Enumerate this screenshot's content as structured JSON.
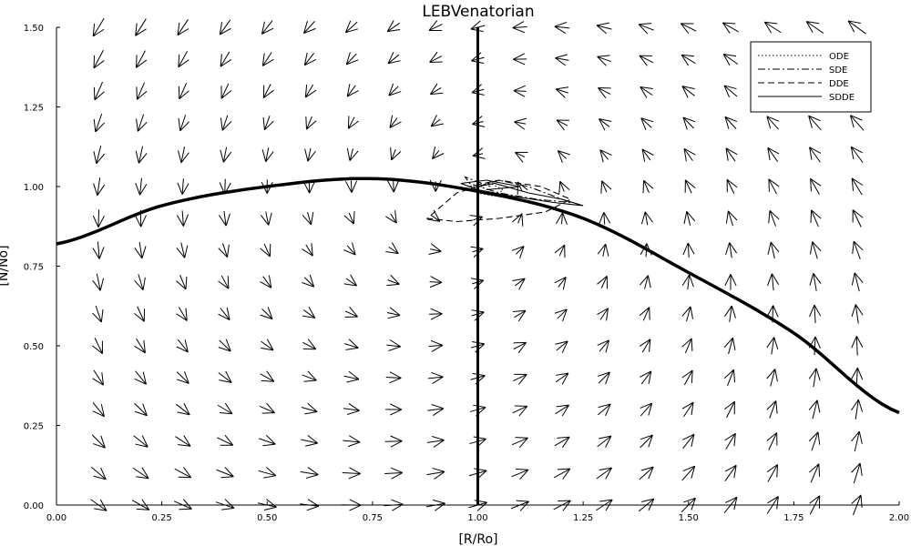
{
  "chart_data": {
    "type": "line",
    "title": "LEBVenatorian",
    "xlabel": "[R/Ro]",
    "ylabel": "[N/No]",
    "xlim": [
      0,
      2
    ],
    "ylim": [
      0,
      1.5
    ],
    "xticks": [
      "0.00",
      "0.25",
      "0.50",
      "0.75",
      "1.00",
      "1.25",
      "1.50",
      "1.75",
      "2.00"
    ],
    "yticks": [
      "0.00",
      "0.25",
      "0.50",
      "0.75",
      "1.00",
      "1.25",
      "1.50"
    ],
    "grid": false,
    "legend_position": "top-right",
    "vertical_line_x": 1.0,
    "nullcline": {
      "x": [
        0.0,
        0.25,
        0.5,
        0.75,
        1.0,
        1.25,
        1.5,
        1.75,
        2.0
      ],
      "y": [
        0.82,
        0.94,
        1.0,
        1.025,
        0.985,
        0.9,
        0.73,
        0.54,
        0.29
      ]
    },
    "series": [
      {
        "name": "ODE",
        "dash": "dotted",
        "x": [
          1.0,
          1.03,
          1.06,
          1.04,
          1.0,
          0.98,
          1.01
        ],
        "y": [
          1.0,
          1.01,
          0.99,
          0.97,
          0.98,
          1.0,
          1.0
        ]
      },
      {
        "name": "SDE",
        "dash": "dashdot",
        "x": [
          1.0,
          1.05,
          1.12,
          1.18,
          1.22,
          1.14,
          1.05,
          0.98,
          0.97,
          1.03
        ],
        "y": [
          1.0,
          1.02,
          1.0,
          0.97,
          0.95,
          0.96,
          0.98,
          1.01,
          1.03,
          1.0
        ]
      },
      {
        "name": "DDE",
        "dash": "dashed",
        "x": [
          1.0,
          0.95,
          0.88,
          0.95,
          1.05,
          1.16,
          1.22,
          1.15,
          1.05,
          0.98
        ],
        "y": [
          1.0,
          0.98,
          0.9,
          0.89,
          0.9,
          0.92,
          0.96,
          1.0,
          1.02,
          1.0
        ]
      },
      {
        "name": "SDDE",
        "dash": "solid",
        "x": [
          1.0,
          1.04,
          1.12,
          1.2,
          1.25,
          1.18,
          1.08,
          1.0,
          0.96,
          1.02,
          1.1,
          1.02
        ],
        "y": [
          1.0,
          1.01,
          0.98,
          0.96,
          0.94,
          0.95,
          0.97,
          0.99,
          1.01,
          1.02,
          1.0,
          0.99
        ]
      }
    ]
  }
}
